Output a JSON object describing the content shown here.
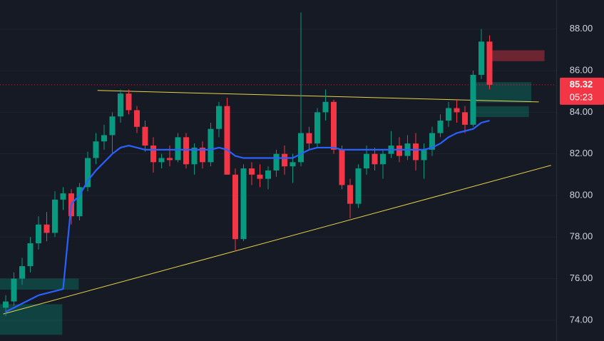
{
  "chart_data": {
    "type": "candlestick",
    "up_color": "#089981",
    "down_color": "#f23645",
    "ylim": [
      73.0,
      89.4
    ],
    "yticks": [
      {
        "value": 74,
        "label": "74.00"
      },
      {
        "value": 76,
        "label": "76.00"
      },
      {
        "value": 78,
        "label": "78.00"
      },
      {
        "value": 80,
        "label": "80.00"
      },
      {
        "value": 82,
        "label": "82.00"
      },
      {
        "value": 84,
        "label": "84.00"
      },
      {
        "value": 86,
        "label": "86.00"
      },
      {
        "value": 88,
        "label": "88.00"
      }
    ],
    "grid": true,
    "open": [
      74.6,
      74.9,
      76.0,
      76.6,
      77.7,
      78.6,
      78.2,
      79.8,
      80.1,
      79.0,
      80.4,
      81.8,
      82.6,
      82.9,
      83.8,
      84.9,
      84.1,
      83.3,
      82.4,
      81.6,
      81.8,
      81.7,
      82.8,
      81.5,
      82.3,
      81.6,
      83.2,
      84.3,
      81.0,
      77.9,
      81.3,
      81.0,
      80.8,
      81.2,
      82.0,
      81.4,
      81.6,
      83.0,
      82.5,
      84.0,
      84.5,
      82.2,
      80.5,
      79.6,
      81.3,
      82.0,
      81.5,
      82.0,
      82.4,
      81.9,
      82.5,
      81.7,
      82.2,
      83.0,
      83.6,
      84.2,
      84.0,
      83.4,
      85.8,
      87.4
    ],
    "high": [
      75.2,
      76.3,
      77.0,
      78.0,
      79.0,
      79.2,
      80.2,
      80.4,
      80.3,
      80.6,
      82.1,
      83.0,
      83.4,
      84.0,
      85.1,
      85.1,
      84.3,
      83.6,
      82.8,
      82.0,
      82.4,
      83.0,
      83.0,
      82.5,
      82.6,
      83.5,
      84.5,
      84.7,
      81.3,
      81.5,
      81.6,
      81.5,
      81.4,
      82.2,
      82.4,
      82.0,
      88.8,
      83.3,
      84.2,
      85.1,
      84.6,
      82.4,
      80.8,
      81.5,
      82.4,
      82.3,
      82.2,
      83.1,
      82.8,
      82.9,
      83.0,
      82.5,
      83.3,
      83.9,
      84.5,
      84.6,
      84.3,
      86.0,
      88.0,
      87.7
    ],
    "low": [
      74.2,
      74.7,
      75.7,
      76.3,
      77.4,
      77.8,
      78.0,
      79.3,
      78.6,
      78.8,
      80.2,
      81.5,
      82.2,
      82.0,
      83.5,
      83.9,
      83.0,
      82.1,
      81.1,
      81.3,
      81.4,
      81.6,
      81.3,
      81.0,
      81.3,
      81.4,
      82.8,
      81.0,
      77.3,
      77.8,
      80.5,
      80.4,
      80.3,
      80.9,
      81.0,
      80.6,
      81.4,
      82.2,
      82.3,
      83.6,
      82.0,
      80.3,
      78.9,
      79.4,
      81.0,
      81.2,
      80.8,
      81.8,
      81.6,
      81.7,
      81.2,
      80.8,
      81.9,
      82.8,
      83.3,
      83.5,
      83.0,
      83.3,
      85.6,
      85.1
    ],
    "close": [
      74.9,
      76.0,
      76.6,
      77.7,
      78.6,
      78.2,
      79.8,
      80.1,
      79.0,
      80.4,
      81.8,
      82.6,
      82.9,
      83.8,
      84.9,
      84.1,
      83.3,
      82.4,
      81.6,
      81.8,
      81.7,
      82.8,
      81.5,
      82.3,
      81.6,
      83.2,
      84.3,
      81.0,
      77.9,
      81.3,
      81.0,
      80.8,
      81.2,
      82.0,
      81.4,
      81.6,
      83.0,
      82.5,
      84.0,
      84.5,
      82.2,
      80.5,
      79.6,
      81.3,
      82.0,
      81.5,
      82.0,
      82.4,
      81.9,
      82.5,
      81.7,
      82.2,
      83.0,
      83.6,
      84.2,
      84.0,
      83.4,
      85.8,
      87.4,
      85.32
    ],
    "moving_average": {
      "color": "#2962ff",
      "values": [
        74.4,
        74.6,
        74.8,
        75.0,
        75.2,
        75.3,
        75.4,
        75.5,
        79.6,
        80.0,
        80.7,
        81.2,
        81.6,
        82.0,
        82.3,
        82.4,
        82.3,
        82.2,
        82.2,
        82.2,
        82.2,
        82.2,
        82.2,
        82.2,
        82.2,
        82.2,
        82.3,
        82.2,
        81.9,
        81.8,
        81.8,
        81.8,
        81.8,
        81.8,
        81.8,
        81.8,
        82.0,
        82.2,
        82.3,
        82.3,
        82.3,
        82.2,
        82.2,
        82.2,
        82.2,
        82.2,
        82.2,
        82.2,
        82.2,
        82.2,
        82.2,
        82.2,
        82.3,
        82.5,
        82.8,
        83.0,
        83.1,
        83.2,
        83.5,
        83.6
      ]
    },
    "trendlines": [
      {
        "color": "#e6d34a",
        "from": [
          11.2,
          85.05
        ],
        "to": [
          65.0,
          84.5
        ]
      },
      {
        "color": "#e6d34a",
        "from": [
          -0.3,
          74.3
        ],
        "to": [
          66.5,
          81.45
        ]
      }
    ],
    "zones": [
      {
        "color": "rgba(8,153,129,0.32)",
        "from": -0.7,
        "to": 6.9,
        "low": 73.3,
        "high": 74.77
      },
      {
        "color": "rgba(8,153,129,0.32)",
        "from": -0.7,
        "to": 8.9,
        "low": 75.47,
        "high": 76.0
      },
      {
        "color": "rgba(8,153,129,0.32)",
        "from": 57.0,
        "to": 64.1,
        "low": 84.47,
        "high": 85.45
      },
      {
        "color": "rgba(8,153,129,0.32)",
        "from": 57.0,
        "to": 63.8,
        "low": 83.77,
        "high": 84.29
      },
      {
        "color": "rgba(242,54,69,0.4)",
        "from": 59.0,
        "to": 65.7,
        "low": 86.46,
        "high": 86.98
      }
    ],
    "last_price": 85.32,
    "countdown": "05:23"
  }
}
